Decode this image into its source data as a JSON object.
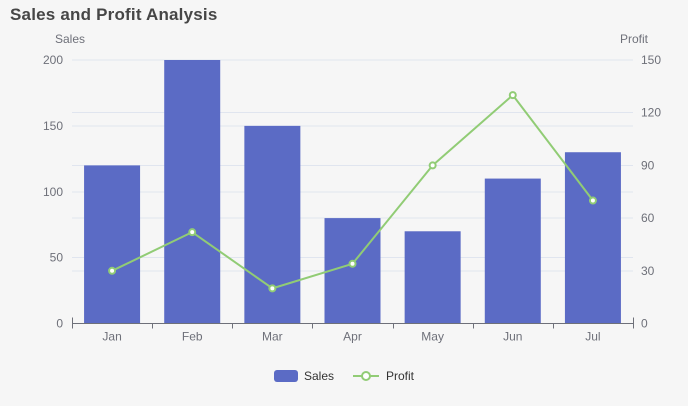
{
  "title": "Sales and Profit Analysis",
  "chart_data": {
    "type": "combo",
    "title": "Sales and Profit Analysis",
    "categories": [
      "Jan",
      "Feb",
      "Mar",
      "Apr",
      "May",
      "Jun",
      "Jul"
    ],
    "series": [
      {
        "name": "Sales",
        "chart_type": "bar",
        "axis": "left",
        "color": "#5b6bc5",
        "values": [
          120,
          200,
          150,
          80,
          70,
          110,
          130
        ]
      },
      {
        "name": "Profit",
        "chart_type": "line",
        "axis": "right",
        "color": "#91cc75",
        "marker": "empty-circle",
        "values": [
          30,
          52,
          20,
          34,
          90,
          130,
          70
        ]
      }
    ],
    "left_axis": {
      "name": "Sales",
      "ticks": [
        0,
        50,
        100,
        150,
        200
      ],
      "min": 0,
      "max": 200
    },
    "right_axis": {
      "name": "Profit",
      "ticks": [
        0,
        30,
        60,
        90,
        120,
        150
      ],
      "min": 0,
      "max": 150
    },
    "legend": {
      "position": "bottom",
      "items": [
        "Sales",
        "Profit"
      ]
    },
    "grid": true
  },
  "colors": {
    "background": "#f6f6f6",
    "grid": "#e0e5ef",
    "axis": "#6e7079",
    "tick_label": "#6e7079",
    "title": "#464646",
    "legend_text": "#333333"
  }
}
